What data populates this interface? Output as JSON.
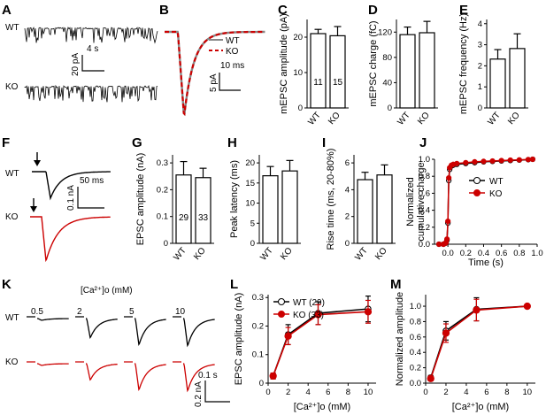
{
  "panels": {
    "A": {
      "label": "A",
      "wt": "WT",
      "ko": "KO",
      "scale_time": "4 s",
      "scale_amp": "20 pA"
    },
    "B": {
      "label": "B",
      "legend_wt": "WT",
      "legend_ko": "KO",
      "scale_time": "10 ms",
      "scale_amp": "5 pA"
    },
    "C": {
      "label": "C"
    },
    "D": {
      "label": "D"
    },
    "E": {
      "label": "E"
    },
    "F": {
      "label": "F",
      "wt": "WT",
      "ko": "KO",
      "scale_time": "50 ms",
      "scale_amp": "0.1 nA"
    },
    "G": {
      "label": "G"
    },
    "H": {
      "label": "H"
    },
    "I": {
      "label": "I"
    },
    "J": {
      "label": "J"
    },
    "K": {
      "label": "K",
      "header": "[Ca²⁺]o (mM)",
      "concentrations": [
        "0.5",
        "2",
        "5",
        "10"
      ],
      "wt": "WT",
      "ko": "KO",
      "scale_time": "0.1 s",
      "scale_amp": "0.2 nA"
    },
    "L": {
      "label": "L"
    },
    "M": {
      "label": "M"
    }
  },
  "colors": {
    "wt": "#000000",
    "ko": "#cc0000"
  },
  "chart_data": [
    {
      "id": "C",
      "type": "bar",
      "categories": [
        "WT",
        "KO"
      ],
      "values": [
        21.0,
        20.4
      ],
      "errors": [
        1.2,
        2.6
      ],
      "n_labels": [
        "11",
        "15"
      ],
      "ylabel": "mEPSC amplitude (pA)",
      "ylim": [
        0,
        25
      ],
      "yticks": [
        0,
        10,
        20
      ]
    },
    {
      "id": "D",
      "type": "bar",
      "categories": [
        "WT",
        "KO"
      ],
      "values": [
        116,
        119
      ],
      "errors": [
        12,
        18
      ],
      "ylabel": "mEPSC charge (fC)",
      "ylim": [
        0,
        140
      ],
      "yticks": [
        0,
        40,
        80,
        120
      ]
    },
    {
      "id": "E",
      "type": "bar",
      "categories": [
        "WT",
        "KO"
      ],
      "values": [
        2.32,
        2.82
      ],
      "errors": [
        0.45,
        0.7
      ],
      "ylabel": "mEPSC frequency (Hz)",
      "ylim": [
        0,
        4.2
      ],
      "yticks": [
        0,
        1,
        2,
        3,
        4
      ]
    },
    {
      "id": "G",
      "type": "bar",
      "categories": [
        "WT",
        "KO"
      ],
      "values": [
        0.255,
        0.245
      ],
      "errors": [
        0.05,
        0.035
      ],
      "n_labels": [
        "29",
        "33"
      ],
      "ylabel": "EPSC amplitude (nA)",
      "ylim": [
        0,
        0.33
      ],
      "yticks": [
        0,
        0.1,
        0.2,
        0.3
      ]
    },
    {
      "id": "H",
      "type": "bar",
      "categories": [
        "WT",
        "KO"
      ],
      "values": [
        16.8,
        18.0
      ],
      "errors": [
        2.3,
        2.6
      ],
      "ylabel": "Peak latency (ms)",
      "ylim": [
        0,
        22
      ],
      "yticks": [
        0,
        5,
        10,
        15,
        20
      ]
    },
    {
      "id": "I",
      "type": "bar",
      "categories": [
        "WT",
        "KO"
      ],
      "values": [
        4.75,
        5.1
      ],
      "errors": [
        0.55,
        0.75
      ],
      "ylabel": "Rise time (ms, 20-80%)",
      "ylim": [
        0,
        6.6
      ],
      "yticks": [
        0,
        2,
        4,
        6
      ]
    },
    {
      "id": "J",
      "type": "line",
      "xlabel": "Time (s)",
      "ylabel": "Normalized cumulative charge",
      "xlim": [
        -0.15,
        1.0
      ],
      "ylim": [
        0,
        1.0
      ],
      "xticks": [
        0.0,
        0.2,
        0.4,
        0.6,
        0.8,
        1.0
      ],
      "yticks": [
        0.0,
        0.2,
        0.4,
        0.6,
        0.8,
        1.0
      ],
      "legend_placement": "center-right",
      "series": [
        {
          "name": "WT",
          "marker": "open-circle",
          "x": [
            -0.1,
            -0.05,
            -0.03,
            -0.02,
            -0.01,
            0.0,
            0.01,
            0.02,
            0.04,
            0.06,
            0.1,
            0.2,
            0.3,
            0.4,
            0.5,
            0.6,
            0.7,
            0.8,
            0.9,
            0.95
          ],
          "y": [
            0.0,
            0.0,
            0.01,
            0.02,
            0.05,
            0.25,
            0.75,
            0.88,
            0.92,
            0.93,
            0.94,
            0.95,
            0.96,
            0.97,
            0.975,
            0.98,
            0.985,
            0.99,
            0.995,
            1.0
          ]
        },
        {
          "name": "KO",
          "marker": "filled-circle",
          "x": [
            -0.1,
            -0.05,
            -0.03,
            -0.02,
            -0.01,
            0.0,
            0.01,
            0.02,
            0.04,
            0.06,
            0.1,
            0.2,
            0.3,
            0.4,
            0.5,
            0.6,
            0.7,
            0.8,
            0.9,
            0.95
          ],
          "y": [
            0.0,
            0.0,
            0.01,
            0.02,
            0.06,
            0.27,
            0.78,
            0.9,
            0.93,
            0.94,
            0.95,
            0.96,
            0.97,
            0.975,
            0.98,
            0.985,
            0.99,
            0.993,
            0.997,
            1.0
          ]
        }
      ]
    },
    {
      "id": "L",
      "type": "line",
      "xlabel": "[Ca²⁺]o (mM)",
      "ylabel": "EPSC amplitude (nA)",
      "xlim": [
        0,
        10.8
      ],
      "ylim": [
        0,
        0.31
      ],
      "xticks": [
        0,
        2,
        4,
        6,
        8,
        10
      ],
      "yticks": [
        0,
        0.1,
        0.2,
        0.3
      ],
      "legend_placement": "top-left",
      "series": [
        {
          "name": "WT (29)",
          "marker": "open-circle",
          "x": [
            0.5,
            2,
            5,
            10
          ],
          "y": [
            0.025,
            0.17,
            0.245,
            0.26
          ],
          "err": [
            0.01,
            0.035,
            0.04,
            0.045
          ]
        },
        {
          "name": "KO (33)",
          "marker": "filled-circle",
          "x": [
            0.5,
            2,
            5,
            10
          ],
          "y": [
            0.025,
            0.165,
            0.24,
            0.25
          ],
          "err": [
            0.01,
            0.03,
            0.035,
            0.04
          ]
        }
      ]
    },
    {
      "id": "M",
      "type": "line",
      "xlabel": "[Ca²⁺]o (mM)",
      "ylabel": "Normalized amplitude",
      "xlim": [
        0,
        10.8
      ],
      "ylim": [
        0,
        1.15
      ],
      "xticks": [
        0,
        2,
        4,
        6,
        8,
        10
      ],
      "yticks": [
        0.0,
        0.2,
        0.4,
        0.6,
        0.8,
        1.0
      ],
      "series": [
        {
          "name": "WT",
          "marker": "open-circle",
          "x": [
            0.5,
            2,
            5,
            10
          ],
          "y": [
            0.07,
            0.68,
            0.96,
            1.0
          ],
          "err": [
            0.03,
            0.12,
            0.15,
            0.0
          ]
        },
        {
          "name": "KO",
          "marker": "filled-circle",
          "x": [
            0.5,
            2,
            5,
            10
          ],
          "y": [
            0.06,
            0.65,
            0.95,
            1.0
          ],
          "err": [
            0.03,
            0.12,
            0.14,
            0.0
          ]
        }
      ]
    }
  ]
}
